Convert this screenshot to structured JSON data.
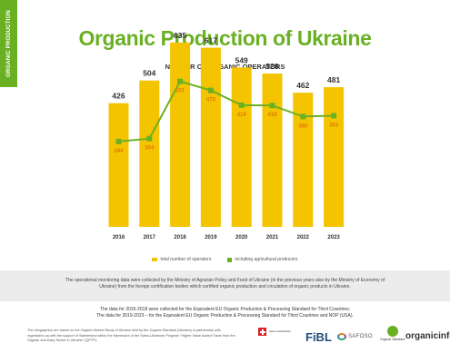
{
  "side_label": "ORGANIC PRODUCTION",
  "title": "Organic Production of Ukraine",
  "chart_data": {
    "type": "bar",
    "title": "NUMBER OF ORGANIC OPERATORS",
    "categories": [
      "2016",
      "2017",
      "2018",
      "2019",
      "2020",
      "2021",
      "2022",
      "2023"
    ],
    "series": [
      {
        "name": "total number of operators",
        "type": "bar",
        "color": "#f5c400",
        "values": [
          426,
          504,
          635,
          617,
          549,
          528,
          462,
          481
        ]
      },
      {
        "name": "including agricultural producers",
        "type": "line",
        "color": "#6ab023",
        "values": [
          294,
          304,
          501,
          470,
          419,
          418,
          380,
          383
        ]
      }
    ],
    "ylim": [
      0,
      700
    ],
    "grid": false,
    "legend": "bottom-center"
  },
  "band_text": "The operational monitoring data were collected by the Ministry of Agrarian Policy and Food of Ukraine (in the previous years also by the Ministry of Economy of Ukraine) from the foreign certification bodies which certified organic production and circulation of organic products in Ukraine.",
  "note_line1": "The data for 2016-2018 were collected for the Equivalent EU Organic Production & Processing Standard for Third Countries;",
  "note_line2": "The data for 2019-2023 – for the Equivalent EU Organic Production & Processing Standard for Third Countries and NOP (USA).",
  "footer_text": "The infographics are based on the Organic Market Study of Ukraine held by the Organic Standard (Ukraine) in partnership with organicinfo.ua with the support of Switzerland within the framework of the Swiss-Ukrainian Program \"Higher Value Added Trade from the Organic and Dairy Sector in Ukraine\" (QFTP).",
  "logos": {
    "swiss": "Swiss Confederation",
    "fibl": "FiBL",
    "safoso": "SAFOSO",
    "organic_standard": "Organic Standard",
    "organicinfo": "organicinfo"
  }
}
